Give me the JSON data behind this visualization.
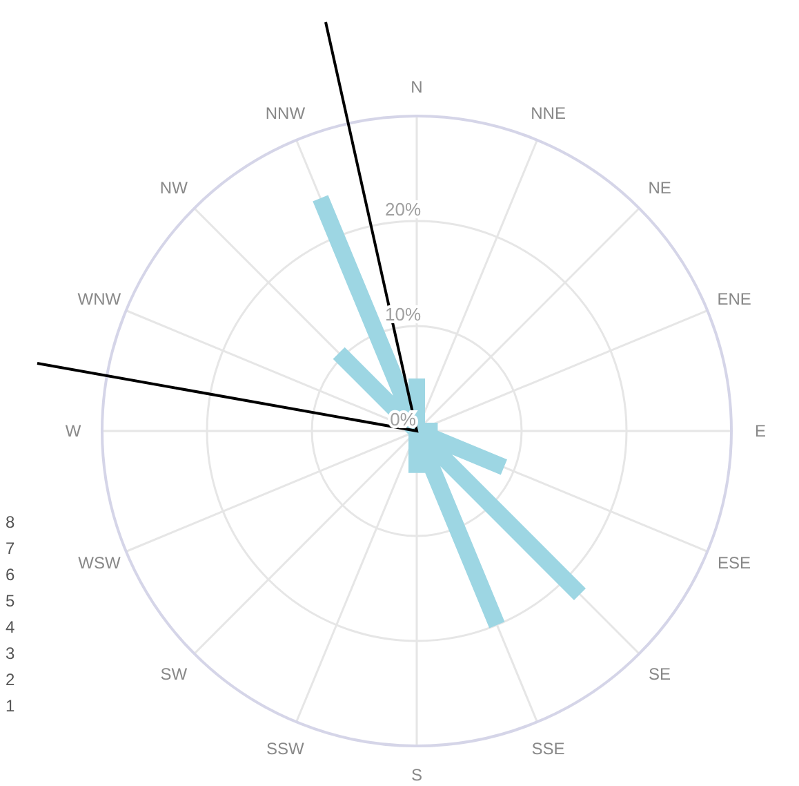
{
  "chart_data": {
    "type": "radar",
    "categories": [
      "N",
      "NNE",
      "NE",
      "ENE",
      "E",
      "ESE",
      "SE",
      "SSE",
      "S",
      "SSW",
      "SW",
      "WSW",
      "W",
      "WNW",
      "NW",
      "NNW"
    ],
    "series": [
      {
        "type": "bar",
        "color": "#9dd6e3",
        "values": [
          5,
          0,
          0,
          0,
          2,
          9,
          22,
          20,
          4,
          0,
          0,
          0,
          0,
          0,
          10.5,
          24
        ]
      }
    ],
    "ylim": [
      0,
      30
    ],
    "yticks": [
      {
        "value": 0,
        "label": "0%"
      },
      {
        "value": 10,
        "label": "10%"
      },
      {
        "value": 20,
        "label": "20%"
      }
    ],
    "grid": true,
    "annotations": [
      "8",
      "7",
      "6",
      "5",
      "4",
      "3",
      "2",
      "1"
    ]
  }
}
